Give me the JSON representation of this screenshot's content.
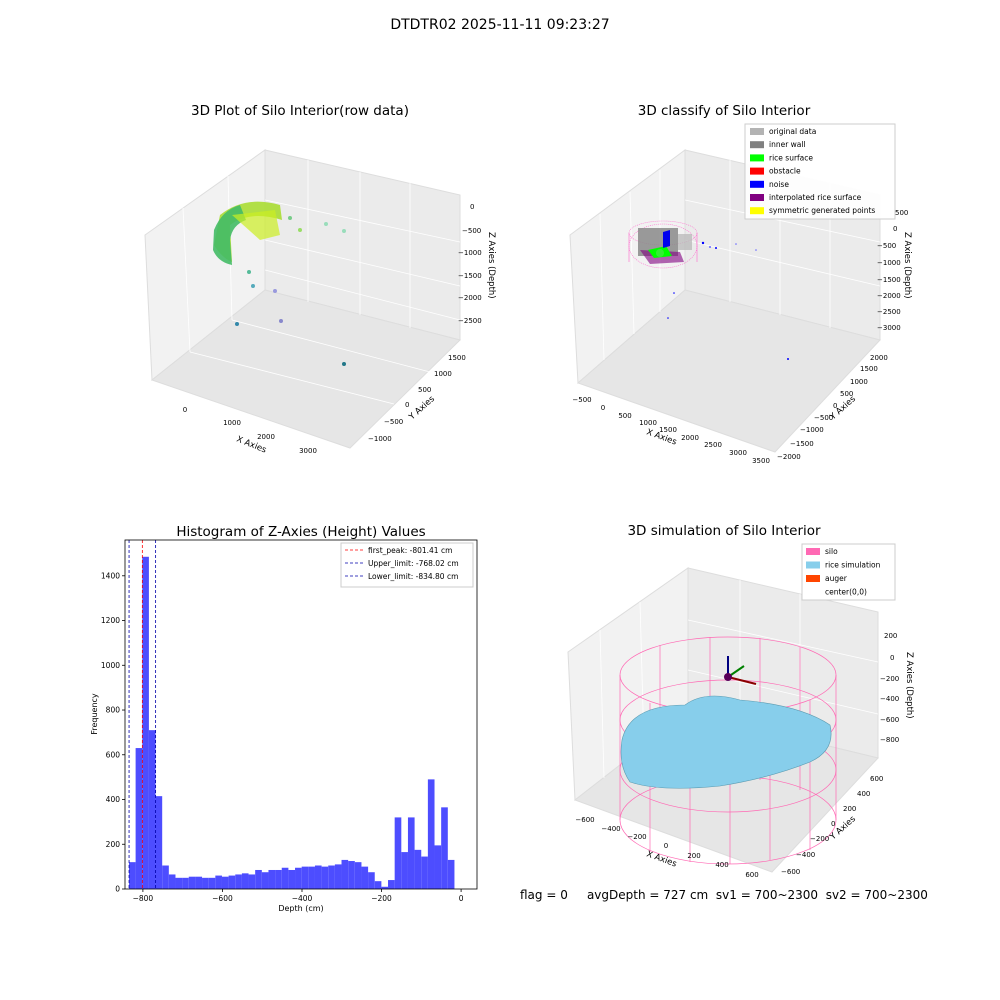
{
  "suptitle": "DTDTR02 2025-11-11 09:23:27",
  "panels": {
    "raw": {
      "title": "3D Plot of Silo Interior(row data)",
      "xlabel": "X Axies",
      "ylabel": "Y Axies",
      "zlabel": "Z Axies (Depth)",
      "xticks": [
        "0",
        "1000",
        "2000",
        "3000"
      ],
      "yticks": [
        "1500",
        "1000",
        "500",
        "0",
        "−500",
        "−1000"
      ],
      "zticks": [
        "0",
        "−500",
        "−1000",
        "−1500",
        "−2000",
        "−2500"
      ]
    },
    "classify": {
      "title": "3D classify of Silo Interior",
      "xlabel": "X Axies",
      "ylabel": "Y Axies",
      "zlabel": "Z Axies (Depth)",
      "xticks": [
        "−500",
        "0",
        "500",
        "1000",
        "1500",
        "2000",
        "2500",
        "3000",
        "3500"
      ],
      "yticks": [
        "2000",
        "1500",
        "1000",
        "500",
        "0",
        "−500",
        "−1000",
        "−1500",
        "−2000"
      ],
      "zticks": [
        "0",
        "−500",
        "−1000",
        "−1500",
        "−2000",
        "−2500",
        "−3000"
      ],
      "zticks_extra": "500",
      "legend": [
        {
          "label": "original data",
          "color": "#b3b3b3"
        },
        {
          "label": "inner wall",
          "color": "#808080"
        },
        {
          "label": "rice surface",
          "color": "#00ff00"
        },
        {
          "label": "obstacle",
          "color": "#ff0000"
        },
        {
          "label": "noise",
          "color": "#0000ff"
        },
        {
          "label": "interpolated rice surface",
          "color": "#800080"
        },
        {
          "label": "symmetric generated points",
          "color": "#ffff00"
        }
      ]
    },
    "simulation": {
      "title": "3D simulation of Silo Interior",
      "xlabel": "X Axies",
      "ylabel": "Y Axies",
      "zlabel": "Z Axies (Depth)",
      "xticks": [
        "−600",
        "−400",
        "−200",
        "0",
        "200",
        "400",
        "600"
      ],
      "yticks": [
        "600",
        "400",
        "200",
        "0",
        "−200",
        "−400",
        "−600"
      ],
      "zticks": [
        "200",
        "0",
        "−200",
        "−400",
        "−600",
        "−800"
      ],
      "legend": [
        {
          "label": "silo",
          "color": "#ff69b4"
        },
        {
          "label": "rice simulation",
          "color": "#87ceeb"
        },
        {
          "label": "auger",
          "color": "#ff4500"
        },
        {
          "label": "center(0,0)",
          "color": "#ffffff"
        }
      ]
    }
  },
  "chart_data": [
    {
      "type": "bar",
      "title": "Histogram of Z-Axies (Height) Values",
      "xlabel": "Depth (cm)",
      "ylabel": "Frequency",
      "xlim": [
        -845,
        40
      ],
      "ylim": [
        0,
        1560
      ],
      "xticks": [
        -800,
        -600,
        -400,
        -200,
        0
      ],
      "xtick_labels": [
        "−800",
        "−600",
        "−400",
        "−200",
        "0"
      ],
      "yticks": [
        0,
        200,
        400,
        600,
        800,
        1000,
        1200,
        1400
      ],
      "bar_color": "#4d4dff",
      "bin_start": -835,
      "bin_width": 16.7,
      "values": [
        120,
        630,
        1485,
        710,
        415,
        105,
        65,
        50,
        50,
        55,
        55,
        50,
        50,
        60,
        55,
        60,
        65,
        70,
        65,
        85,
        75,
        85,
        85,
        95,
        85,
        95,
        100,
        100,
        105,
        100,
        105,
        110,
        130,
        125,
        120,
        100,
        75,
        35,
        10,
        40,
        320,
        165,
        320,
        175,
        145,
        490,
        195,
        365,
        130
      ],
      "vlines": [
        {
          "label": "first_peak: -801.41 cm",
          "x": -801.41,
          "color": "#ff0000"
        },
        {
          "label": "Upper_limit: -768.02 cm",
          "x": -768.02,
          "color": "#0000aa"
        },
        {
          "label": "Lower_limit: -834.80 cm",
          "x": -834.8,
          "color": "#0000aa"
        }
      ],
      "legend_position": "top-right"
    }
  ],
  "status": {
    "flag": "flag = 0",
    "avg": "avgDepth = 727 cm",
    "sv1": "sv1 = 700~2300",
    "sv2": "sv2 = 700~2300"
  }
}
